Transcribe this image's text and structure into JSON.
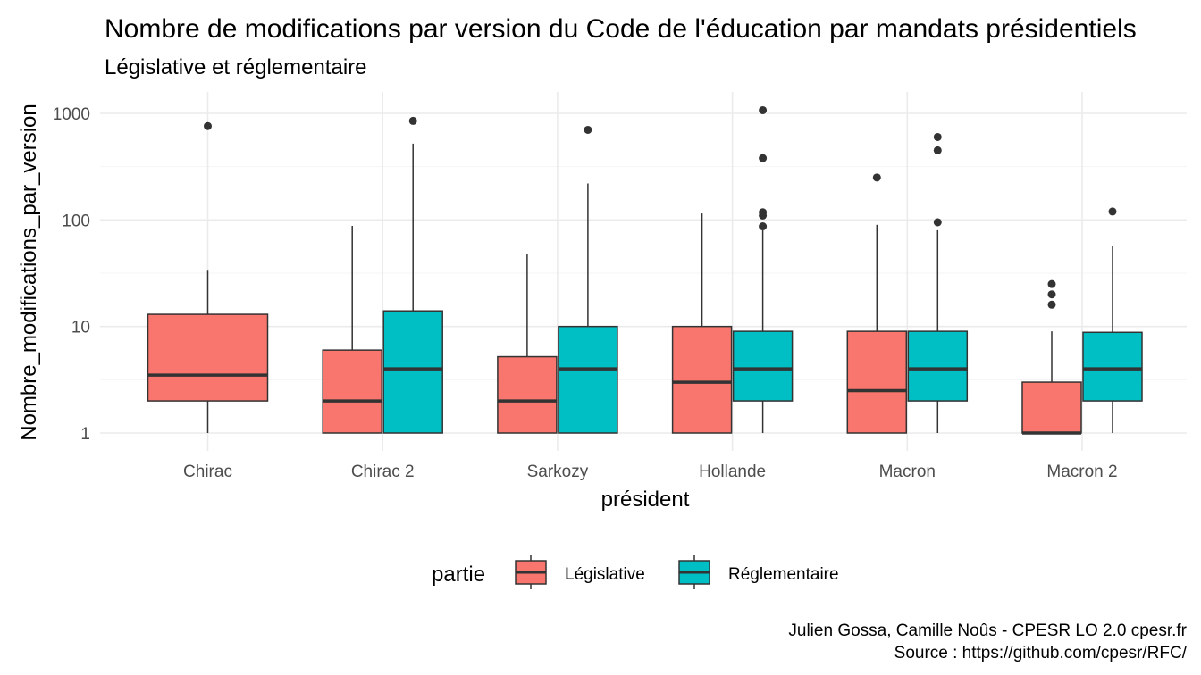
{
  "chart_data": {
    "type": "boxplot",
    "title": "Nombre de modifications par version du Code de l'éducation par mandats présidentiels",
    "subtitle": "Législative et réglementaire",
    "xlabel": "président",
    "ylabel": "Nombre_modifications_par_version",
    "yscale": "log10",
    "ylim": [
      0.75,
      1550
    ],
    "yticks": [
      1,
      10,
      100,
      1000
    ],
    "ytick_labels": [
      "1",
      "10",
      "100",
      "1000"
    ],
    "categories": [
      "Chirac",
      "Chirac 2",
      "Sarkozy",
      "Hollande",
      "Macron",
      "Macron 2"
    ],
    "legend": {
      "title": "partie",
      "position": "bottom",
      "entries": [
        "Législative",
        "Réglementaire"
      ]
    },
    "colors": {
      "Législative": "#F8766D",
      "Réglementaire": "#00BFC4"
    },
    "series": [
      {
        "name": "Législative",
        "boxes": [
          {
            "category": "Chirac",
            "whisker_low": 1,
            "q1": 2,
            "median": 3.5,
            "q3": 13,
            "whisker_high": 34,
            "outliers": [
              760
            ]
          },
          {
            "category": "Chirac 2",
            "whisker_low": 1,
            "q1": 1,
            "median": 2,
            "q3": 6,
            "whisker_high": 88,
            "outliers": []
          },
          {
            "category": "Sarkozy",
            "whisker_low": 1,
            "q1": 1,
            "median": 2,
            "q3": 5.2,
            "whisker_high": 48,
            "outliers": []
          },
          {
            "category": "Hollande",
            "whisker_low": 1,
            "q1": 1,
            "median": 3,
            "q3": 10,
            "whisker_high": 115,
            "outliers": []
          },
          {
            "category": "Macron",
            "whisker_low": 1,
            "q1": 1,
            "median": 2.5,
            "q3": 9,
            "whisker_high": 90,
            "outliers": [
              250
            ]
          },
          {
            "category": "Macron 2",
            "whisker_low": 1,
            "q1": 1,
            "median": 1,
            "q3": 3,
            "whisker_high": 9,
            "outliers": [
              16,
              20,
              25
            ]
          }
        ]
      },
      {
        "name": "Réglementaire",
        "boxes": [
          {
            "category": "Chirac 2",
            "whisker_low": 1,
            "q1": 1,
            "median": 4,
            "q3": 14,
            "whisker_high": 520,
            "outliers": [
              850
            ]
          },
          {
            "category": "Sarkozy",
            "whisker_low": 1,
            "q1": 1,
            "median": 4,
            "q3": 10,
            "whisker_high": 220,
            "outliers": [
              700
            ]
          },
          {
            "category": "Hollande",
            "whisker_low": 1,
            "q1": 2,
            "median": 4,
            "q3": 9,
            "whisker_high": 80,
            "outliers": [
              87,
              110,
              118,
              380,
              1070
            ]
          },
          {
            "category": "Macron",
            "whisker_low": 1,
            "q1": 2,
            "median": 4,
            "q3": 9,
            "whisker_high": 80,
            "outliers": [
              95,
              450,
              600
            ]
          },
          {
            "category": "Macron 2",
            "whisker_low": 1,
            "q1": 2,
            "median": 4,
            "q3": 8.8,
            "whisker_high": 57,
            "outliers": [
              120
            ]
          }
        ]
      }
    ]
  },
  "caption": {
    "line1": "Julien Gossa, Camille Noûs - CPESR LO 2.0 cpesr.fr",
    "line2": "Source : https://github.com/cpesr/RFC/"
  }
}
